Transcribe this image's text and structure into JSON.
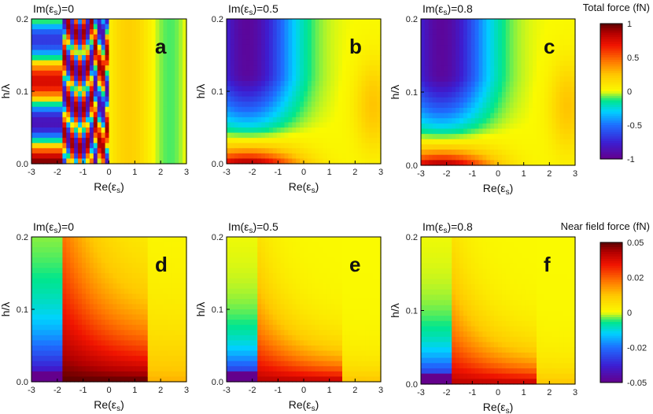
{
  "chart_data": {
    "type": "heatmap",
    "x_range": [
      -3,
      3
    ],
    "y_range": [
      0.0,
      0.2
    ],
    "x_ticks": [
      "-3",
      "-2",
      "-1",
      "0",
      "1",
      "2",
      "3"
    ],
    "y_ticks": [
      "0.0",
      "0.1",
      "0.2"
    ],
    "xlabel_main": "Re(ε",
    "xlabel_sub": "s",
    "xlabel_tail": ")",
    "ylabel": "h/λ",
    "panels": [
      {
        "id": "a",
        "title_prefix": "Im(ε",
        "title_sub": "s",
        "title_suffix": ")=0",
        "im_eps": 0.0,
        "kind": "total"
      },
      {
        "id": "b",
        "title_prefix": "Im(ε",
        "title_sub": "s",
        "title_suffix": ")=0.5",
        "im_eps": 0.5,
        "kind": "total"
      },
      {
        "id": "c",
        "title_prefix": "Im(ε",
        "title_sub": "s",
        "title_suffix": ")=0.8",
        "im_eps": 0.8,
        "kind": "total"
      },
      {
        "id": "d",
        "title_prefix": "Im(ε",
        "title_sub": "s",
        "title_suffix": ")=0",
        "im_eps": 0.0,
        "kind": "near"
      },
      {
        "id": "e",
        "title_prefix": "Im(ε",
        "title_sub": "s",
        "title_suffix": ")=0.5",
        "im_eps": 0.5,
        "kind": "near"
      },
      {
        "id": "f",
        "title_prefix": "Im(ε",
        "title_sub": "s",
        "title_suffix": ")=0.8",
        "im_eps": 0.8,
        "kind": "near"
      }
    ],
    "colorbars": [
      {
        "title": "Total force (fN)",
        "range": [
          -1,
          1
        ],
        "ticks": [
          "1",
          "0.5",
          "0",
          "-0.5",
          "-1"
        ]
      },
      {
        "title": "Near field force (fN)",
        "range": [
          -0.05,
          0.05
        ],
        "ticks": [
          "0.05",
          "0.02",
          "0",
          "-0.02",
          "-0.05"
        ]
      }
    ]
  }
}
